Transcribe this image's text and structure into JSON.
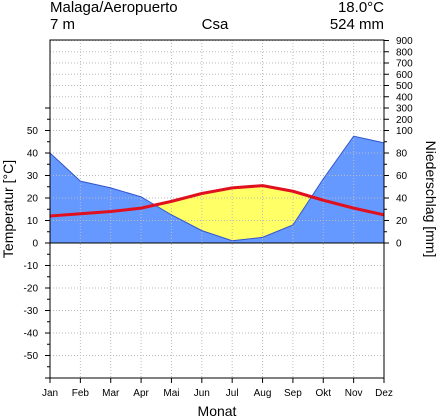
{
  "header": {
    "station": "Malaga/Aeropuerto",
    "mean_temp": "18.0°C",
    "elevation": "7 m",
    "climate_class": "Csa",
    "annual_precip": "524 mm"
  },
  "chart_data": {
    "type": "line",
    "title": "Malaga/Aeropuerto",
    "categories": [
      "Jan",
      "Feb",
      "Mar",
      "Apr",
      "Mai",
      "Jun",
      "Jul",
      "Aug",
      "Sep",
      "Okt",
      "Nov",
      "Dez"
    ],
    "xlabel": "Monat",
    "ylabel_left": "Temperatur [°C]",
    "ylabel_right": "Niederschlag [mm]",
    "ylim_left": [
      -60,
      60
    ],
    "ylim_right": [
      0,
      900
    ],
    "left_ticks": [
      "50",
      "40",
      "30",
      "20",
      "10",
      "0",
      "-10",
      "-20",
      "-30",
      "-40",
      "-50"
    ],
    "right_ticks": [
      "900",
      "800",
      "700",
      "600",
      "500",
      "400",
      "300",
      "200",
      "100",
      "80",
      "60",
      "40",
      "20",
      "0"
    ],
    "grid": true,
    "series": [
      {
        "values": [
          12,
          13,
          14,
          15.5,
          18.5,
          22,
          24.5,
          25.5,
          23,
          19,
          15.5,
          12.5
        ],
        "color": "#e0101f"
      },
      {
        "values": [
          80,
          55,
          49,
          41,
          25,
          11,
          2,
          5,
          16,
          57,
          95,
          89
        ],
        "color": "#6699ff"
      }
    ],
    "humid_fill_color": "#6699ff",
    "arid_fill_color": "#ffff66"
  }
}
